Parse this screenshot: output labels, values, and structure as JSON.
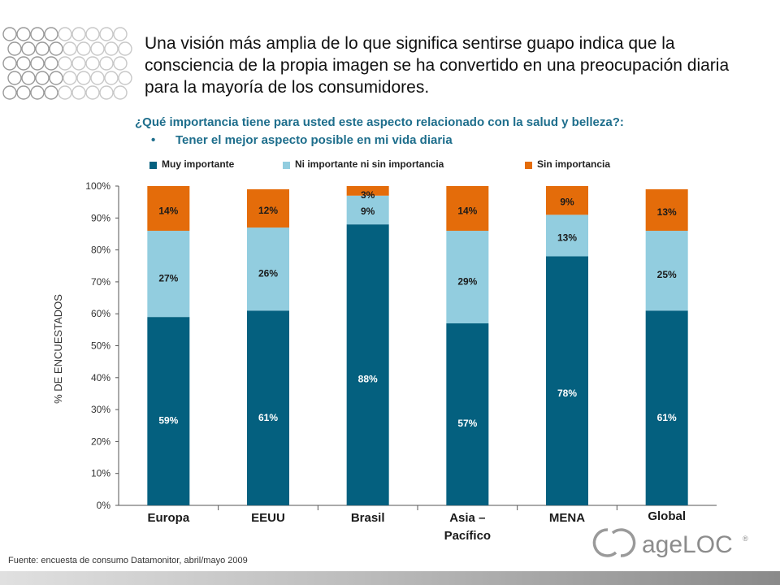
{
  "header": {
    "title": "Una visión más amplia de lo que significa sentirse guapo indica que la consciencia de la propia imagen se ha convertido en una preocupación diaria para la mayoría de los consumidores.",
    "question": "¿Qué importancia tiene para usted este aspecto relacionado con la salud y belleza?:",
    "bullet_marker": "•",
    "bullet": "Tener el mejor aspecto posible en mi vida diaria"
  },
  "colors": {
    "muy": "#04607f",
    "ni": "#92cddf",
    "sin": "#e46c0a",
    "text_teal": "#1e6e8c"
  },
  "chart_data": {
    "type": "bar",
    "stacked": true,
    "categories": [
      "Europa",
      "EEUU",
      "Brasil",
      "Asia –\nPacífico",
      "MENA",
      "Global"
    ],
    "series": [
      {
        "name": "Muy importante",
        "values": [
          59,
          61,
          88,
          57,
          78,
          61
        ],
        "labels": [
          "59%",
          "61%",
          "88%",
          "57%",
          "78%",
          "61%"
        ]
      },
      {
        "name": "Ni importante ni sin importancia",
        "values": [
          27,
          26,
          9,
          29,
          13,
          25
        ],
        "labels": [
          "27%",
          "26%",
          "9%",
          "29%",
          "13%",
          "25%"
        ]
      },
      {
        "name": "Sin importancia",
        "values": [
          14,
          12,
          3,
          14,
          9,
          13
        ],
        "labels": [
          "14%",
          "12%",
          "3%",
          "14%",
          "9%",
          "13%"
        ]
      }
    ],
    "ylabel": "% DE ENCUESTADOS",
    "ylim": [
      0,
      100
    ],
    "yticks": [
      "0%",
      "10%",
      "20%",
      "30%",
      "40%",
      "50%",
      "60%",
      "70%",
      "80%",
      "90%",
      "100%"
    ],
    "legend_position": "top"
  },
  "footer": {
    "source": "Fuente: encuesta de consumo Datamonitor, abril/mayo 2009",
    "logo_text": "ageLOC",
    "logo_mark": "®"
  }
}
